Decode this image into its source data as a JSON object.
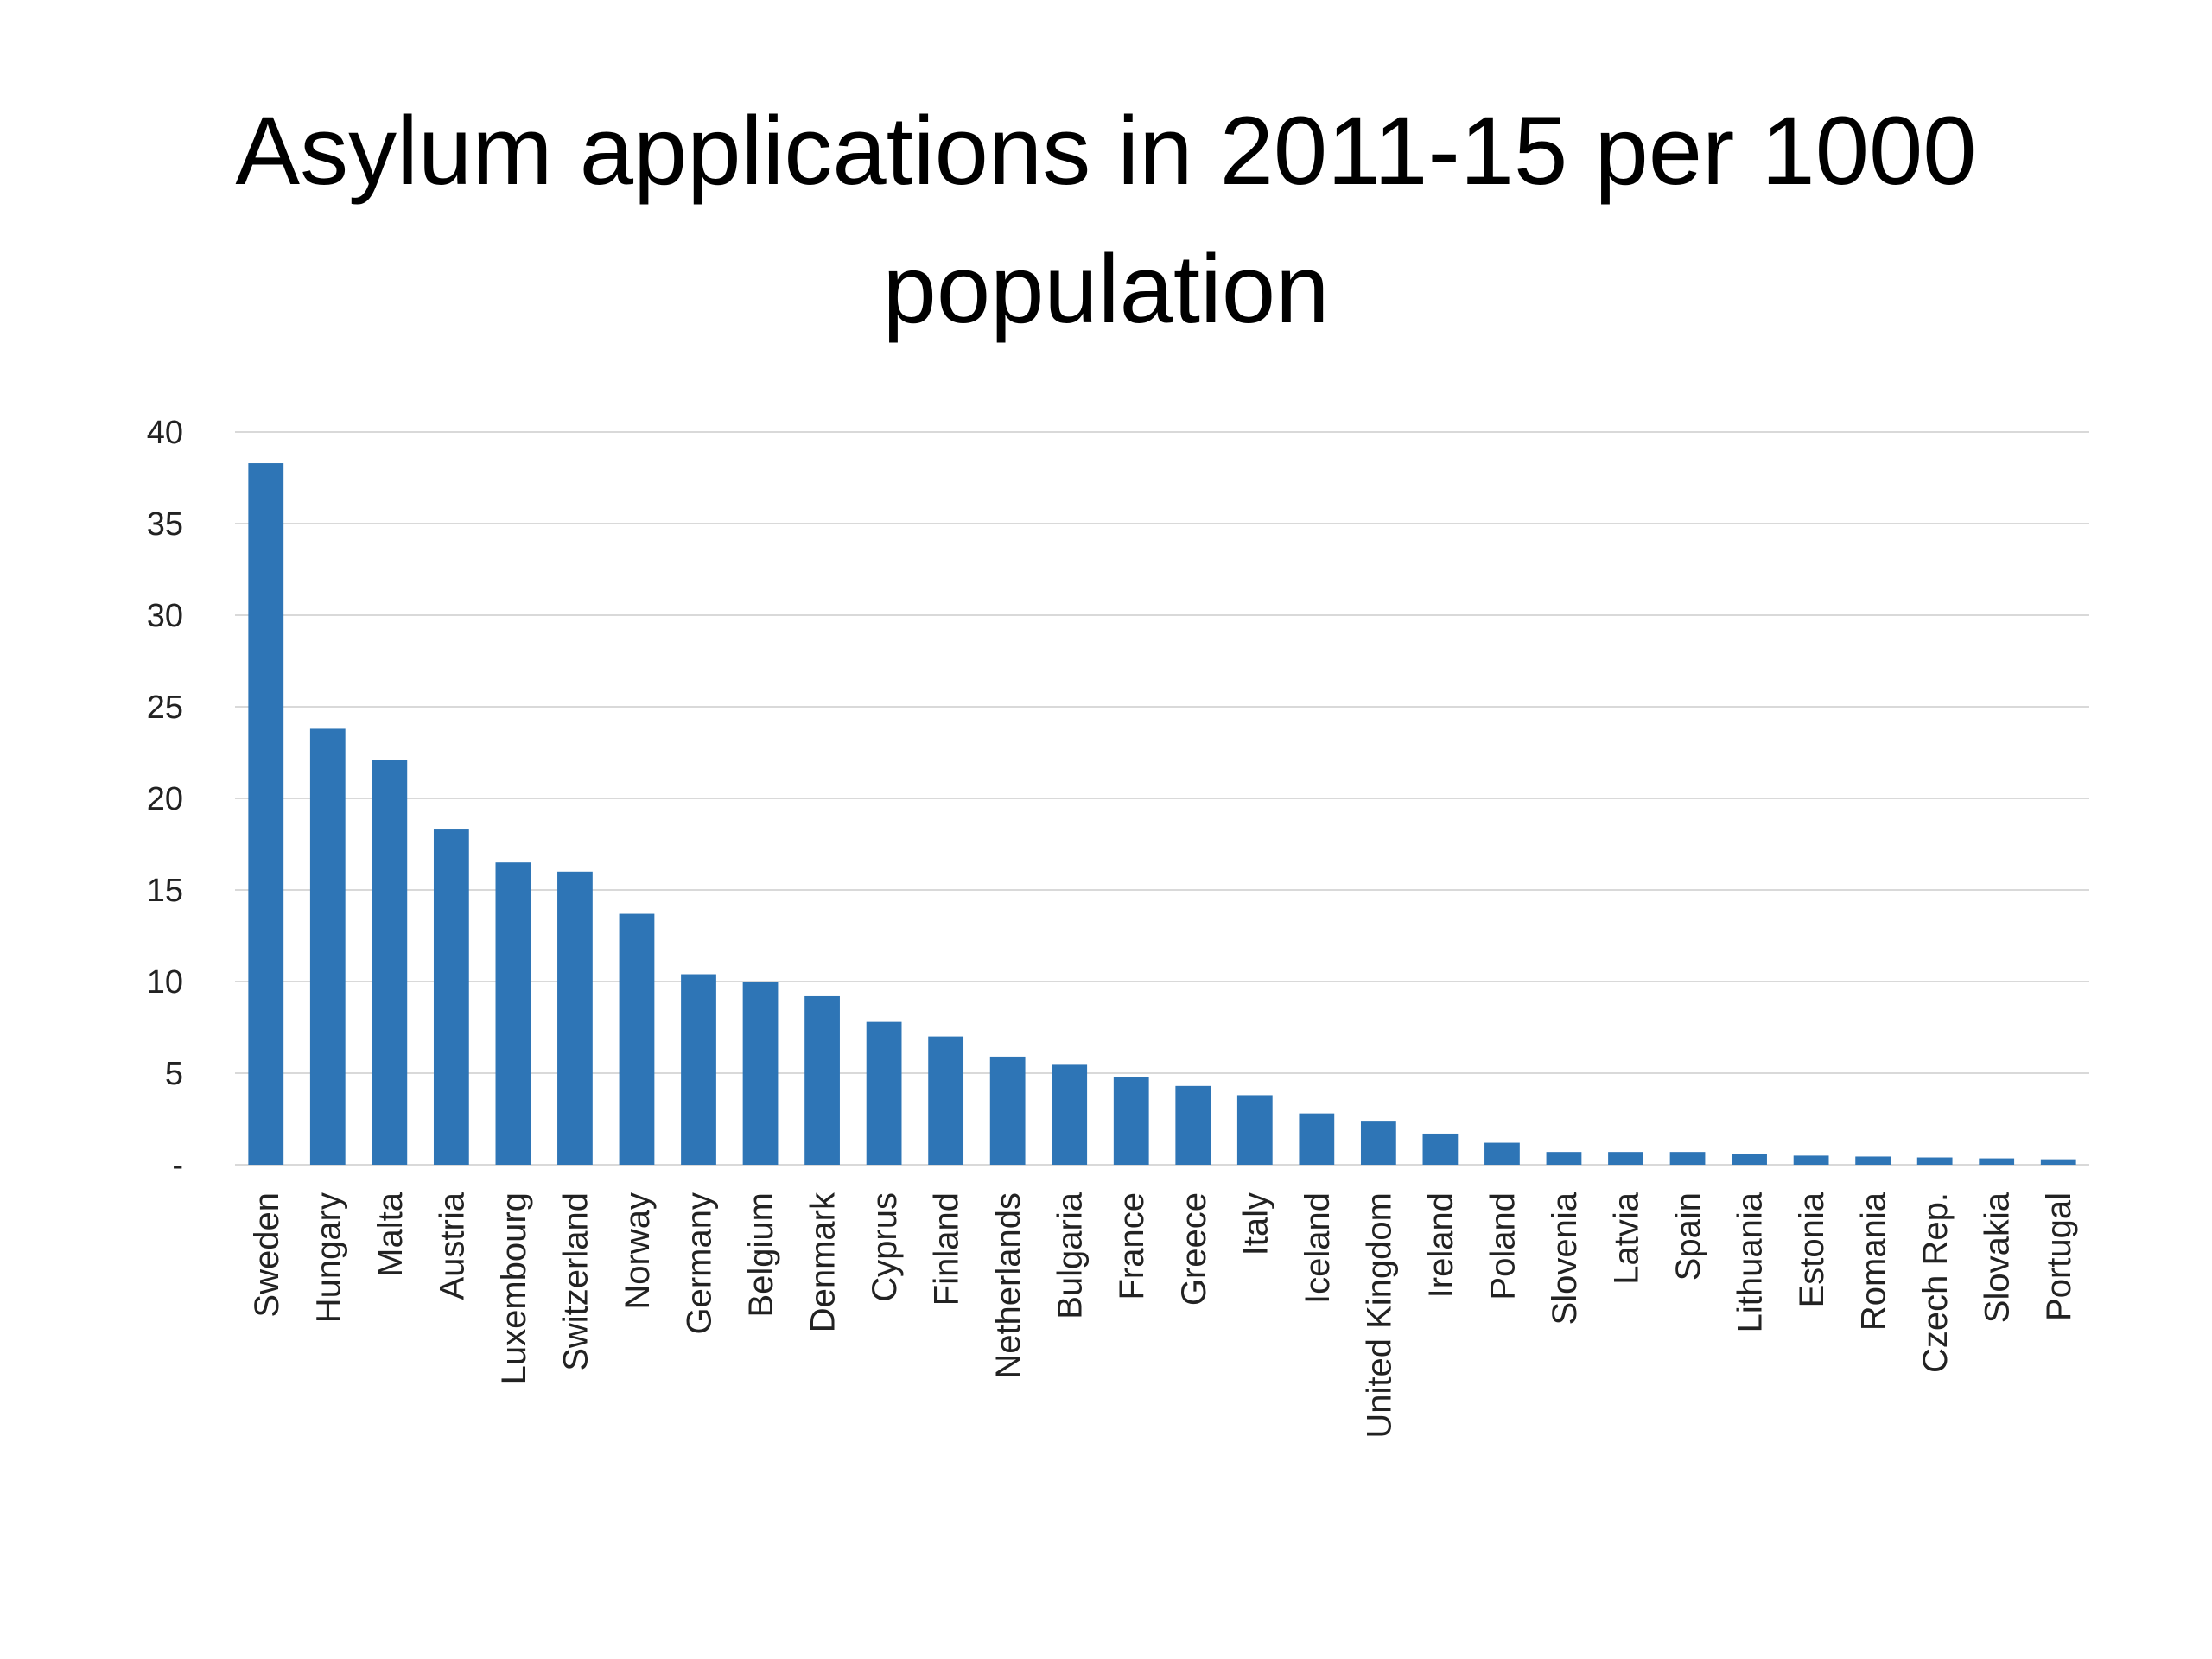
{
  "slide": {
    "title_line1": "Asylum applications in 2011-15 per 1000",
    "title_line2": "population"
  },
  "chart_data": {
    "type": "bar",
    "title": "Asylum applications in 2011-15 per 1000 population",
    "xlabel": "",
    "ylabel": "",
    "ylim": [
      0,
      40
    ],
    "yticks": [
      0,
      5,
      10,
      15,
      20,
      25,
      30,
      35,
      40
    ],
    "ytick_labels": [
      "-",
      "5",
      "10",
      "15",
      "20",
      "25",
      "30",
      "35",
      "40"
    ],
    "grid": true,
    "bar_color": "#2e75b6",
    "grid_color": "#d9d9d9",
    "categories": [
      "Sweden",
      "Hungary",
      "Malta",
      "Austria",
      "Luxembourg",
      "Switzerland",
      "Norway",
      "Germany",
      "Belgium",
      "Denmark",
      "Cyprus",
      "Finland",
      "Netherlands",
      "Bulgaria",
      "France",
      "Greece",
      "Italy",
      "Iceland",
      "United Kingdom",
      "Ireland",
      "Poland",
      "Slovenia",
      "Latvia",
      "Spain",
      "Lithuania",
      "Estonia",
      "Romania",
      "Czech Rep.",
      "Slovakia",
      "Portugal"
    ],
    "values": [
      38.3,
      23.8,
      22.1,
      18.3,
      16.5,
      16.0,
      13.7,
      10.4,
      10.0,
      9.2,
      7.8,
      7.0,
      5.9,
      5.5,
      4.8,
      4.3,
      3.8,
      2.8,
      2.4,
      1.7,
      1.2,
      0.7,
      0.7,
      0.7,
      0.6,
      0.5,
      0.45,
      0.4,
      0.35,
      0.3
    ]
  }
}
